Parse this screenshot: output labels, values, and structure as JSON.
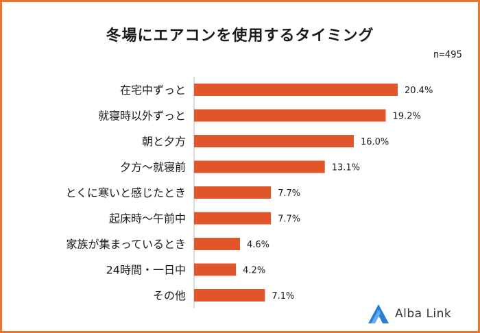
{
  "title": "冬場にエアコンを使用するタイミング",
  "sample_size": "n=495",
  "brand": "Alba Link",
  "colors": {
    "bar": "#e0562a",
    "border": "#e8732a",
    "axis": "#b3b3b3",
    "logo_blue": "#2a7fd4"
  },
  "chart_data": {
    "type": "bar",
    "orientation": "horizontal",
    "title": "冬場にエアコンを使用するタイミング",
    "categories": [
      "在宅中ずっと",
      "就寝時以外ずっと",
      "朝と夕方",
      "夕方～就寝前",
      "とくに寒いと感じたとき",
      "起床時～午前中",
      "家族が集まっているとき",
      "24時間・一日中",
      "その他"
    ],
    "values": [
      20.4,
      19.2,
      16.0,
      13.1,
      7.7,
      7.7,
      4.6,
      4.2,
      7.1
    ],
    "value_labels": [
      "20.4%",
      "19.2%",
      "16.0%",
      "13.1%",
      "7.7%",
      "7.7%",
      "4.6%",
      "4.2%",
      "7.1%"
    ],
    "unit": "%",
    "xlim": [
      0,
      20.4
    ],
    "xlabel": "",
    "ylabel": ""
  }
}
